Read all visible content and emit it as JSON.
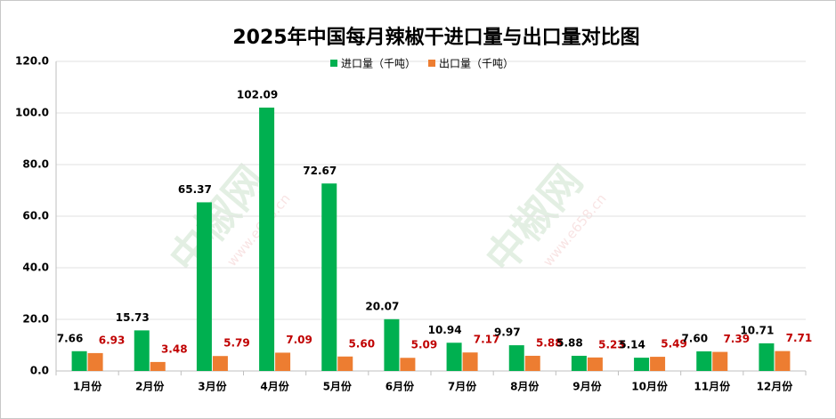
{
  "chart_data": {
    "type": "bar",
    "title": "2025年中国每月辣椒干进口量与出口量对比图",
    "categories": [
      "1月份",
      "2月份",
      "3月份",
      "4月份",
      "5月份",
      "6月份",
      "7月份",
      "8月份",
      "9月份",
      "10月份",
      "11月份",
      "12月份"
    ],
    "series": [
      {
        "name": "进口量（千吨）",
        "color": "#00b050",
        "label_color": "#000000",
        "values": [
          7.66,
          15.73,
          65.37,
          102.09,
          72.67,
          20.07,
          10.94,
          9.97,
          5.88,
          5.14,
          7.6,
          10.71
        ],
        "value_labels": [
          "7.66",
          "15.73",
          "65.37",
          "102.09",
          "72.67",
          "20.07",
          "10.94",
          "9.97",
          "5.88",
          "5.14",
          "7.60",
          "10.71"
        ]
      },
      {
        "name": "出口量（千吨）",
        "color": "#ed7d31",
        "label_color": "#c00000",
        "values": [
          6.93,
          3.48,
          5.79,
          7.09,
          5.6,
          5.09,
          7.17,
          5.88,
          5.23,
          5.49,
          7.39,
          7.71
        ],
        "value_labels": [
          "6.93",
          "3.48",
          "5.79",
          "7.09",
          "5.60",
          "5.09",
          "7.17",
          "5.88",
          "5.23",
          "5.49",
          "7.39",
          "7.71"
        ]
      }
    ],
    "ylim": [
      0,
      120
    ],
    "yticks": [
      {
        "value": 0,
        "label": "0.0"
      },
      {
        "value": 20,
        "label": "20.0"
      },
      {
        "value": 40,
        "label": "40.0"
      },
      {
        "value": 60,
        "label": "60.0"
      },
      {
        "value": 80,
        "label": "80.0"
      },
      {
        "value": 100,
        "label": "100.0"
      },
      {
        "value": 120,
        "label": "120.0"
      }
    ],
    "grid": true,
    "legend": "top",
    "watermark": [
      "中椒网",
      "www.e658.cn"
    ]
  }
}
